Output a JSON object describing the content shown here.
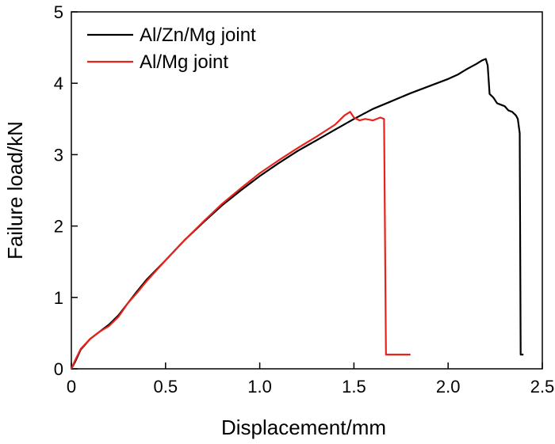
{
  "chart_data": {
    "type": "line",
    "title": "",
    "xlabel": "Displacement/mm",
    "ylabel": "Failure load/kN",
    "xlim": [
      0,
      2.5
    ],
    "ylim": [
      0,
      5
    ],
    "x_ticks": [
      0,
      0.5,
      1.0,
      1.5,
      2.0,
      2.5
    ],
    "x_tick_labels": [
      "0",
      "0.5",
      "1.0",
      "1.5",
      "2.0",
      "2.5"
    ],
    "y_ticks": [
      0,
      1,
      2,
      3,
      4,
      5
    ],
    "y_tick_labels": [
      "0",
      "1",
      "2",
      "3",
      "4",
      "5"
    ],
    "grid": false,
    "legend_position": "top-left",
    "series": [
      {
        "name": "Al/Zn/Mg joint",
        "color": "#000000",
        "points": [
          [
            0,
            0
          ],
          [
            0.02,
            0.1
          ],
          [
            0.05,
            0.27
          ],
          [
            0.1,
            0.42
          ],
          [
            0.15,
            0.52
          ],
          [
            0.2,
            0.62
          ],
          [
            0.25,
            0.75
          ],
          [
            0.3,
            0.92
          ],
          [
            0.35,
            1.09
          ],
          [
            0.4,
            1.25
          ],
          [
            0.5,
            1.52
          ],
          [
            0.6,
            1.8
          ],
          [
            0.7,
            2.05
          ],
          [
            0.8,
            2.29
          ],
          [
            0.9,
            2.5
          ],
          [
            1.0,
            2.7
          ],
          [
            1.1,
            2.88
          ],
          [
            1.2,
            3.05
          ],
          [
            1.3,
            3.2
          ],
          [
            1.4,
            3.35
          ],
          [
            1.5,
            3.5
          ],
          [
            1.6,
            3.64
          ],
          [
            1.7,
            3.75
          ],
          [
            1.8,
            3.86
          ],
          [
            1.9,
            3.96
          ],
          [
            2.0,
            4.06
          ],
          [
            2.05,
            4.12
          ],
          [
            2.1,
            4.2
          ],
          [
            2.15,
            4.27
          ],
          [
            2.18,
            4.32
          ],
          [
            2.2,
            4.34
          ],
          [
            2.21,
            4.25
          ],
          [
            2.22,
            3.85
          ],
          [
            2.24,
            3.8
          ],
          [
            2.26,
            3.72
          ],
          [
            2.28,
            3.7
          ],
          [
            2.3,
            3.68
          ],
          [
            2.32,
            3.62
          ],
          [
            2.34,
            3.6
          ],
          [
            2.36,
            3.55
          ],
          [
            2.37,
            3.5
          ],
          [
            2.38,
            3.3
          ],
          [
            2.385,
            0.2
          ],
          [
            2.4,
            0.2
          ]
        ]
      },
      {
        "name": "Al/Mg joint",
        "color": "#e8221c",
        "points": [
          [
            0,
            0
          ],
          [
            0.02,
            0.12
          ],
          [
            0.05,
            0.28
          ],
          [
            0.1,
            0.42
          ],
          [
            0.15,
            0.52
          ],
          [
            0.2,
            0.6
          ],
          [
            0.25,
            0.73
          ],
          [
            0.3,
            0.92
          ],
          [
            0.35,
            1.07
          ],
          [
            0.4,
            1.23
          ],
          [
            0.5,
            1.52
          ],
          [
            0.6,
            1.8
          ],
          [
            0.7,
            2.06
          ],
          [
            0.8,
            2.31
          ],
          [
            0.9,
            2.53
          ],
          [
            1.0,
            2.74
          ],
          [
            1.1,
            2.92
          ],
          [
            1.2,
            3.09
          ],
          [
            1.3,
            3.25
          ],
          [
            1.4,
            3.42
          ],
          [
            1.45,
            3.55
          ],
          [
            1.48,
            3.6
          ],
          [
            1.5,
            3.52
          ],
          [
            1.53,
            3.48
          ],
          [
            1.56,
            3.5
          ],
          [
            1.6,
            3.48
          ],
          [
            1.64,
            3.52
          ],
          [
            1.66,
            3.5
          ],
          [
            1.67,
            0.2
          ],
          [
            1.7,
            0.2
          ],
          [
            1.75,
            0.2
          ],
          [
            1.8,
            0.2
          ]
        ]
      }
    ]
  }
}
